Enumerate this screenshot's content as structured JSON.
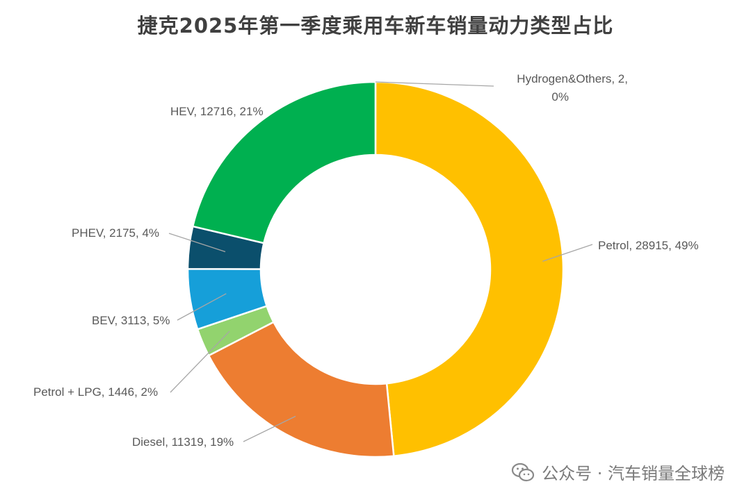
{
  "chart_data": {
    "type": "pie",
    "title": "捷克2025年第一季度乘用车新车销量动力类型占比",
    "donut": true,
    "slices": [
      {
        "name": "Petrol",
        "value": 28915,
        "percent": "49%",
        "color": "#FFC000",
        "label": "Petrol, 28915, 49%"
      },
      {
        "name": "Diesel",
        "value": 11319,
        "percent": "19%",
        "color": "#ED7D31",
        "label": "Diesel, 11319, 19%"
      },
      {
        "name": "Petrol + LPG",
        "value": 1446,
        "percent": "2%",
        "color": "#92D36E",
        "label": "Petrol + LPG, 1446, 2%"
      },
      {
        "name": "BEV",
        "value": 3113,
        "percent": "5%",
        "color": "#169FD9",
        "label": "BEV, 3113, 5%"
      },
      {
        "name": "PHEV",
        "value": 2175,
        "percent": "4%",
        "color": "#0B4F6C",
        "label": "PHEV, 2175, 4%"
      },
      {
        "name": "HEV",
        "value": 12716,
        "percent": "21%",
        "color": "#00B050",
        "label": "HEV, 12716, 21%"
      },
      {
        "name": "Hydrogen&Others",
        "value": 2,
        "percent": "0%",
        "color": "#7F7F7F",
        "label": "Hydrogen&Others, 2, 0%"
      }
    ]
  },
  "watermark": {
    "icon": "wechat-icon",
    "text": "公众号 · 汽车销量全球榜"
  }
}
